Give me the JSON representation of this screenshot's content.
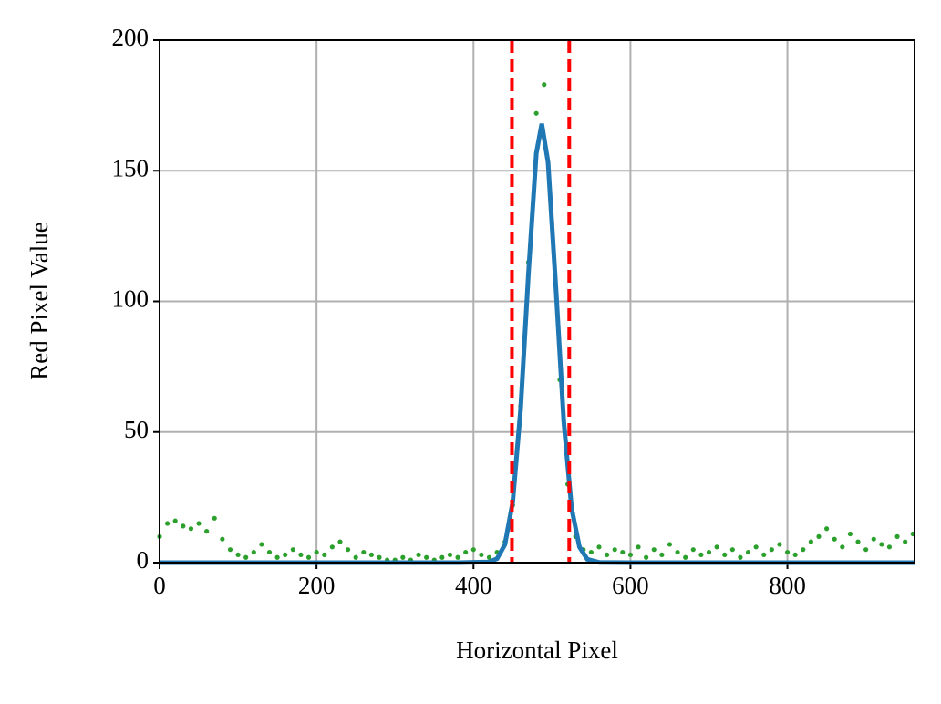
{
  "chart_data": {
    "type": "scatter",
    "xlabel": "Horizontal Pixel",
    "ylabel": "Red Pixel Value",
    "xlim": [
      0,
      962
    ],
    "ylim": [
      0,
      200
    ],
    "xticks": [
      0,
      200,
      400,
      600,
      800
    ],
    "yticks": [
      0,
      50,
      100,
      150,
      200
    ],
    "grid": true,
    "vlines": [
      449,
      522
    ],
    "vline_color": "#ff0000",
    "series": [
      {
        "type": "scatter",
        "color": "#2ca02c",
        "x": [
          0,
          10,
          20,
          30,
          40,
          50,
          60,
          70,
          80,
          90,
          100,
          110,
          120,
          130,
          140,
          150,
          160,
          170,
          180,
          190,
          200,
          210,
          220,
          230,
          240,
          250,
          260,
          270,
          280,
          290,
          300,
          310,
          320,
          330,
          340,
          350,
          360,
          370,
          380,
          390,
          400,
          410,
          420,
          430,
          440,
          450,
          460,
          470,
          480,
          490,
          500,
          510,
          520,
          530,
          540,
          550,
          560,
          570,
          580,
          590,
          600,
          610,
          620,
          630,
          640,
          650,
          660,
          670,
          680,
          690,
          700,
          710,
          720,
          730,
          740,
          750,
          760,
          770,
          780,
          790,
          800,
          810,
          820,
          830,
          840,
          850,
          860,
          870,
          880,
          890,
          900,
          910,
          920,
          930,
          940,
          950,
          960
        ],
        "values": [
          10,
          15,
          16,
          14,
          13,
          15,
          12,
          17,
          9,
          5,
          3,
          2,
          4,
          7,
          4,
          2,
          3,
          5,
          3,
          2,
          4,
          3,
          6,
          8,
          5,
          2,
          4,
          3,
          2,
          1,
          1,
          2,
          1,
          3,
          2,
          1,
          2,
          3,
          2,
          4,
          5,
          3,
          2,
          4,
          8,
          22,
          60,
          115,
          172,
          183,
          130,
          70,
          30,
          10,
          5,
          4,
          6,
          3,
          5,
          4,
          3,
          6,
          2,
          5,
          3,
          7,
          4,
          2,
          5,
          3,
          4,
          6,
          3,
          5,
          2,
          4,
          6,
          3,
          5,
          7,
          4,
          3,
          5,
          8,
          10,
          13,
          9,
          6,
          11,
          8,
          5,
          9,
          7,
          6,
          10,
          8,
          11
        ]
      },
      {
        "type": "line",
        "color": "#1f77b4",
        "x": [
          0,
          380,
          420,
          430,
          440,
          450,
          460,
          470,
          480,
          487,
          495,
          505,
          515,
          525,
          535,
          545,
          560,
          600,
          962
        ],
        "values": [
          0,
          0,
          0.26,
          1.5,
          6.9,
          23.2,
          58.6,
          110.6,
          156.6,
          168,
          153.2,
          105.2,
          54.1,
          20.8,
          6.0,
          1.3,
          0.1,
          0,
          0
        ]
      }
    ]
  }
}
